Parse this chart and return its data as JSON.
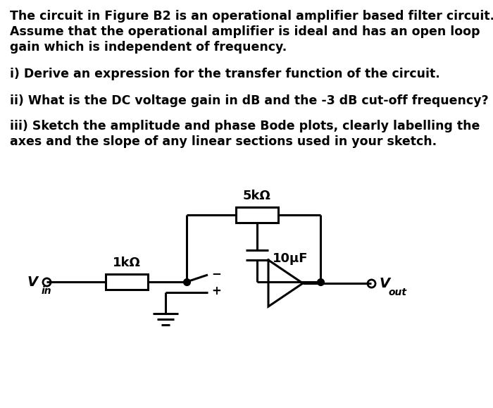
{
  "bg_color": "#ffffff",
  "text_color": "#000000",
  "line1": "The circuit in Figure B2 is an operational amplifier based filter circuit.",
  "line2": "Assume that the operational amplifier is ideal and has an open loop",
  "line3": "gain which is independent of frequency.",
  "line4": "i) Derive an expression for the transfer function of the circuit.",
  "line5": "ii) What is the DC voltage gain in dB and the -3 dB cut-off frequency?",
  "line6": "iii) Sketch the amplitude and phase Bode plots, clearly labelling the",
  "line7": "axes and the slope of any linear sections used in your sketch.",
  "label_5k": "5kΩ",
  "label_1k": "1kΩ",
  "label_10uF": "10μF",
  "label_vin": "V",
  "label_vin_sub": "in",
  "label_vout": "V",
  "label_vout_sub": "out",
  "label_minus": "−",
  "label_plus": "+",
  "font_size_text": 12.5,
  "font_size_labels": 13,
  "font_size_component": 12
}
